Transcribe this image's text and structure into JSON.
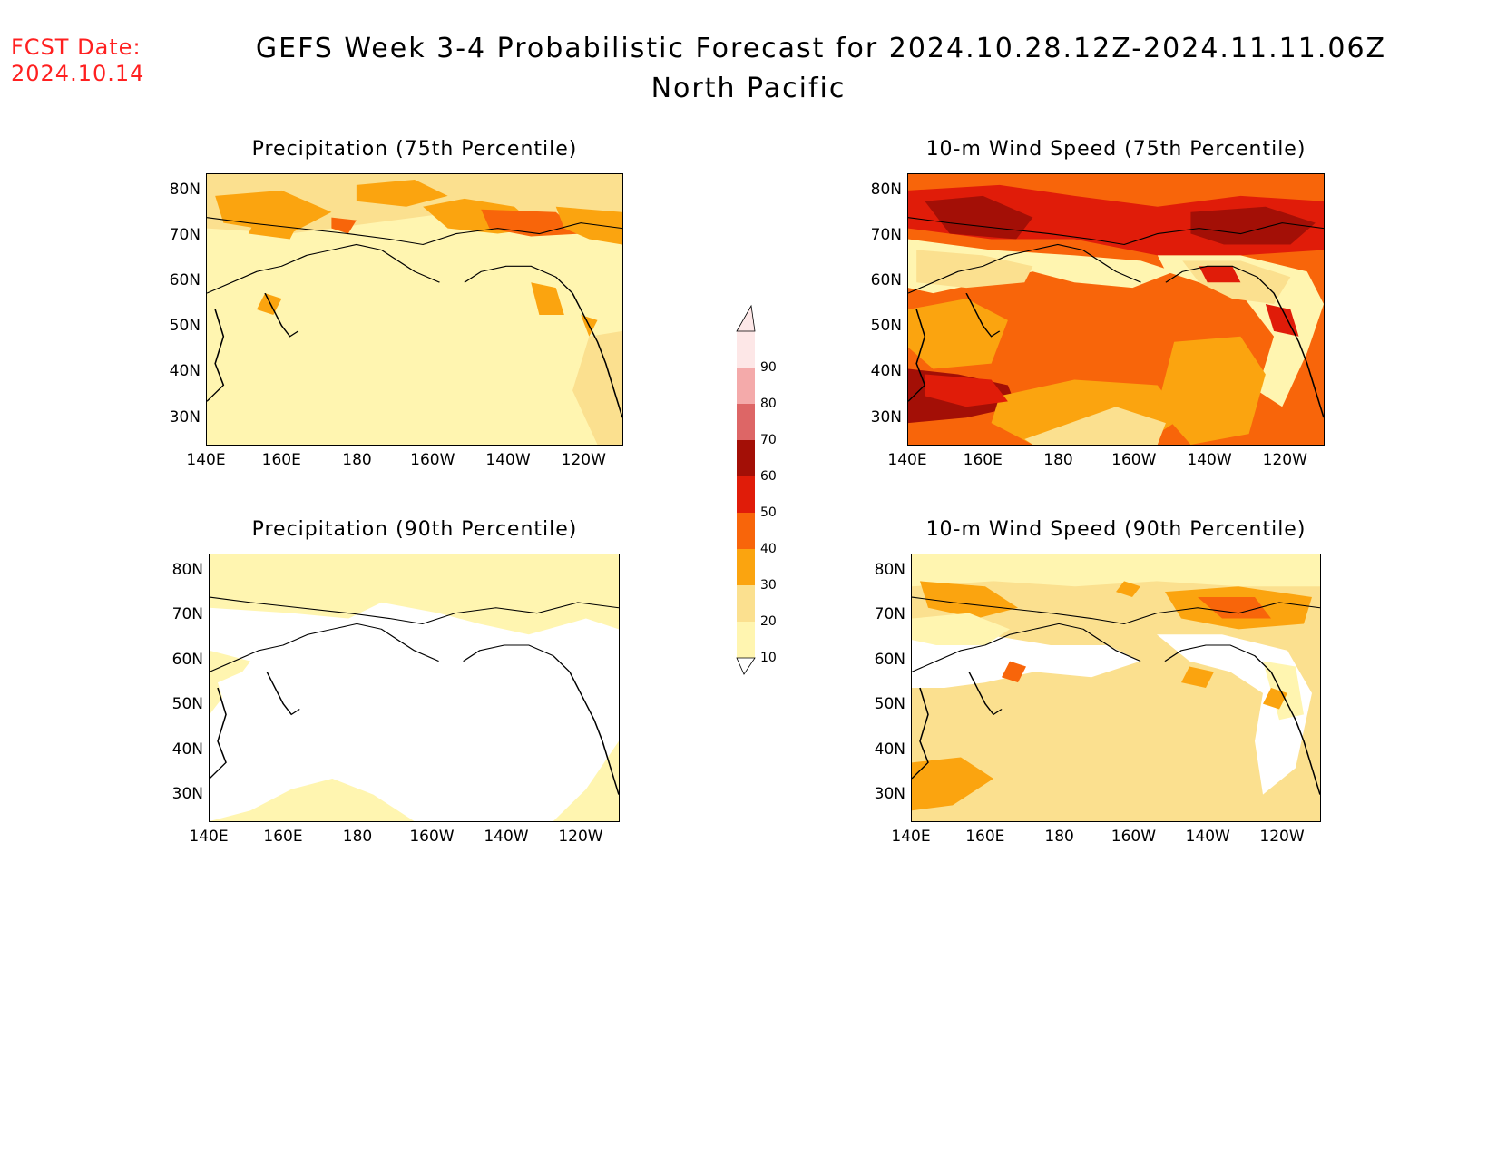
{
  "header": {
    "fcst_label": "FCST Date:",
    "fcst_date": "2024.10.14",
    "title": "GEFS Week 3-4 Probabilistic Forecast for 2024.10.28.12Z-2024.11.11.06Z",
    "subtitle": "North Pacific"
  },
  "panels": [
    {
      "title": "Precipitation (75th Percentile)",
      "fill": "#fbe08f"
    },
    {
      "title": "10-m Wind Speed (75th Percentile)",
      "fill": "#f47d1e"
    },
    {
      "title": "Precipitation (90th Percentile)",
      "fill": "#fff5b0"
    },
    {
      "title": "10-m Wind Speed (90th Percentile)",
      "fill": "#fbe08f"
    }
  ],
  "axes": {
    "lat_labels": [
      "80N",
      "70N",
      "60N",
      "50N",
      "40N",
      "30N"
    ],
    "lon_labels": [
      "140E",
      "160E",
      "180",
      "160W",
      "140W",
      "120W"
    ]
  },
  "colorbar": {
    "levels": [
      "10",
      "20",
      "30",
      "40",
      "50",
      "60",
      "70",
      "80",
      "90"
    ],
    "colors": [
      "#fff5b0",
      "#fbe08f",
      "#fba40f",
      "#f8650a",
      "#e01c09",
      "#a30f06",
      "#dd6666",
      "#f4aaaa",
      "#fde7e7"
    ]
  }
}
